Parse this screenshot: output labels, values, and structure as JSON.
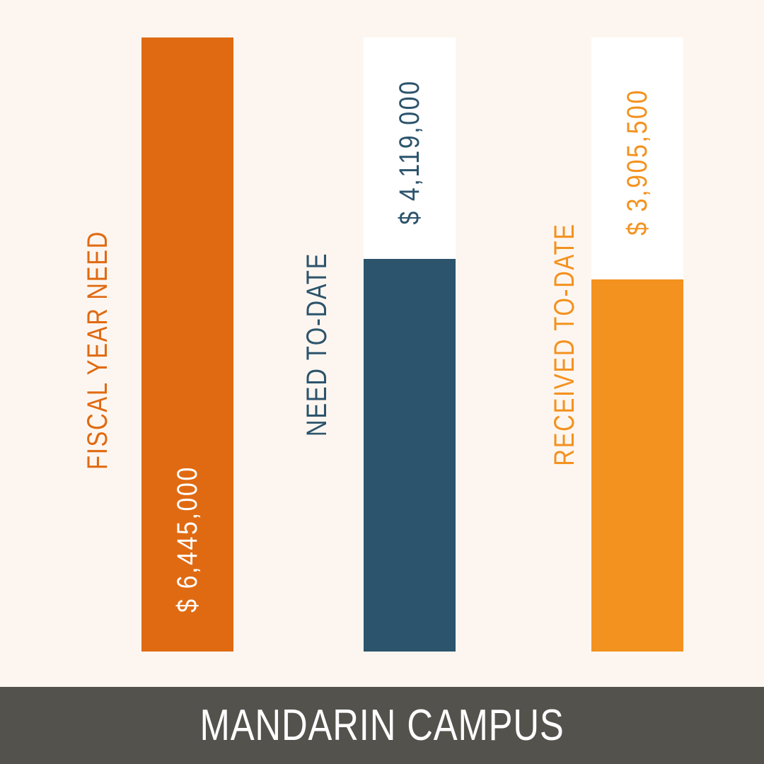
{
  "chart_data": {
    "type": "bar",
    "orientation": "vertical",
    "title": "MANDARIN CAMPUS",
    "categories": [
      "FISCAL YEAR NEED",
      "NEED TO-DATE",
      "RECEIVED TO-DATE"
    ],
    "values": [
      6445000,
      4119000,
      3905500
    ],
    "value_labels": [
      "$ 6,445,000",
      "$ 4,119,000",
      "$ 3,905,500"
    ],
    "ylim": [
      0,
      6445000
    ],
    "grid": false,
    "legend": "none",
    "colors": [
      "#e06a12",
      "#2c546c",
      "#f3921f"
    ],
    "track_color": "#ffffff",
    "background": "#fdf6f0",
    "footer_color": "#54524d"
  }
}
